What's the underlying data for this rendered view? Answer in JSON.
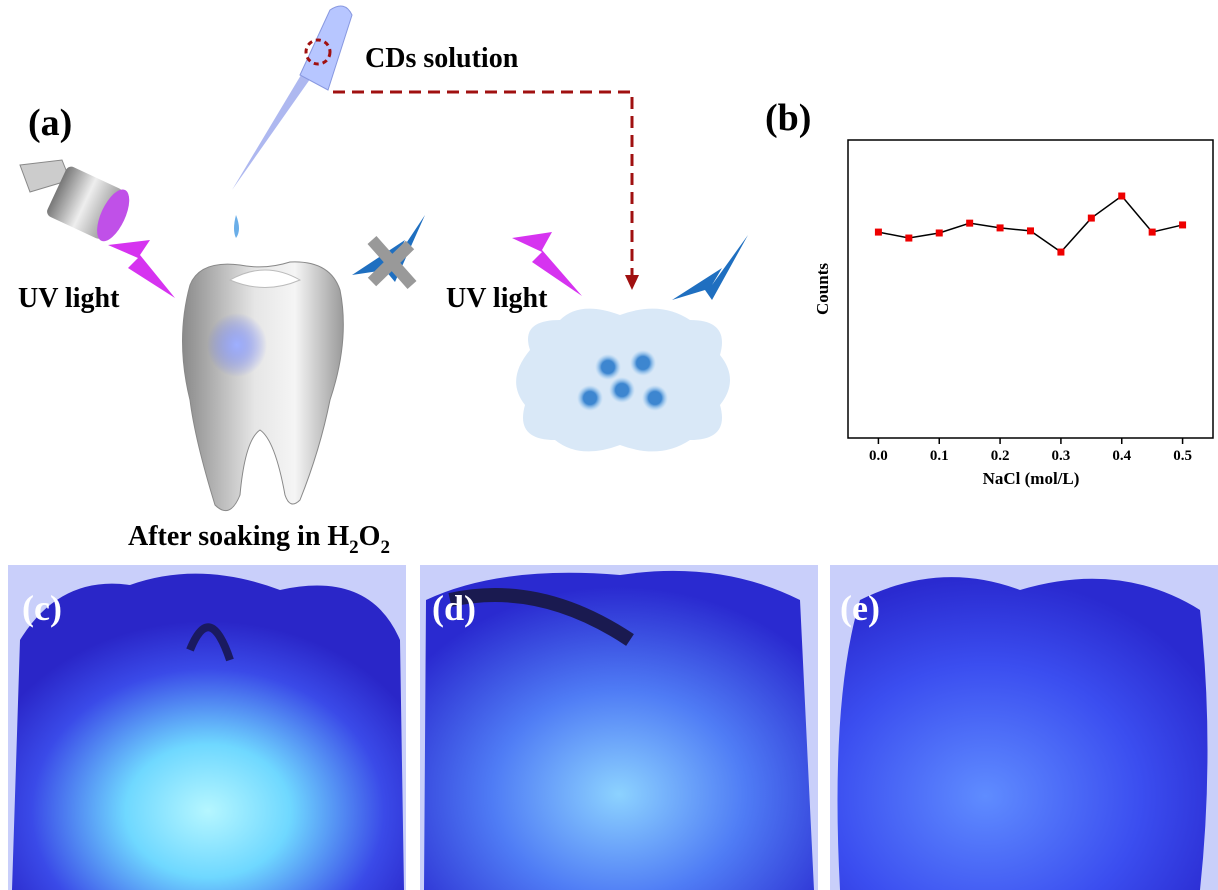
{
  "panel_a": {
    "label": "(a)",
    "solution_label": "CDs solution",
    "uv_labels": [
      "UV light",
      "UV light"
    ],
    "caption": [
      "After soaking in H",
      "2",
      "O",
      "2"
    ]
  },
  "chart_data": {
    "type": "line",
    "panel_label": "(b)",
    "xlabel": "NaCl (mol/L)",
    "ylabel": "Counts",
    "x": [
      0,
      0.05,
      0.1,
      0.15,
      0.2,
      0.25,
      0.3,
      0.35,
      0.4,
      0.45,
      0.5
    ],
    "series": [
      {
        "color": "#000000",
        "marker_color": "#ee0000",
        "values": [
          69.1,
          67.1,
          68.8,
          72.1,
          70.5,
          69.5,
          62.4,
          73.8,
          81.2,
          69.1,
          71.5
        ]
      }
    ],
    "xlim": [
      -0.05,
      0.55
    ],
    "ylim": [
      0,
      100
    ],
    "xticks": [
      {
        "value": 0,
        "label": "0.0"
      },
      0.1,
      0.2,
      0.3,
      0.4,
      0.5
    ]
  },
  "photos": [
    {
      "label": "(c)"
    },
    {
      "label": "(d)"
    },
    {
      "label": "(e)"
    }
  ]
}
